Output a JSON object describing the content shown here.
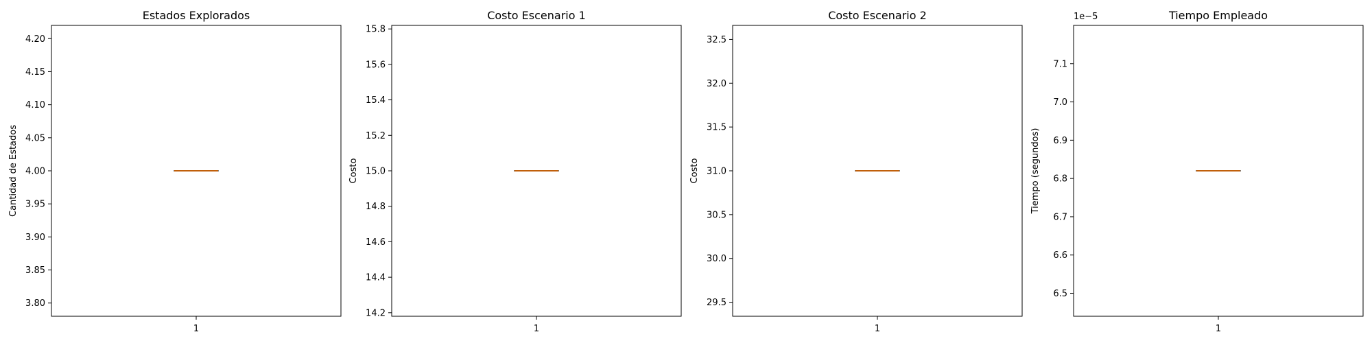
{
  "chart_data": [
    {
      "type": "box",
      "title": "Estados Explorados",
      "xlabel": "",
      "ylabel": "Cantidad de Estados",
      "categories": [
        "1"
      ],
      "yticks": [
        "3.80",
        "3.85",
        "3.90",
        "3.95",
        "4.00",
        "4.05",
        "4.10",
        "4.15",
        "4.20"
      ],
      "ylim": [
        3.78,
        4.22
      ],
      "y_offset_label": "",
      "box": {
        "min": 4.0,
        "q1": 4.0,
        "median": 4.0,
        "q3": 4.0,
        "max": 4.0
      }
    },
    {
      "type": "box",
      "title": "Costo Escenario 1",
      "xlabel": "",
      "ylabel": "Costo",
      "categories": [
        "1"
      ],
      "yticks": [
        "14.2",
        "14.4",
        "14.6",
        "14.8",
        "15.0",
        "15.2",
        "15.4",
        "15.6",
        "15.8"
      ],
      "ylim": [
        14.18,
        15.82
      ],
      "y_offset_label": "",
      "box": {
        "min": 15.0,
        "q1": 15.0,
        "median": 15.0,
        "q3": 15.0,
        "max": 15.0
      }
    },
    {
      "type": "box",
      "title": "Costo Escenario 2",
      "xlabel": "",
      "ylabel": "Costo",
      "categories": [
        "1"
      ],
      "yticks": [
        "29.5",
        "30.0",
        "30.5",
        "31.0",
        "31.5",
        "32.0",
        "32.5"
      ],
      "ylim": [
        29.34,
        32.66
      ],
      "y_offset_label": "",
      "box": {
        "min": 31.0,
        "q1": 31.0,
        "median": 31.0,
        "q3": 31.0,
        "max": 31.0
      }
    },
    {
      "type": "box",
      "title": "Tiempo Empleado",
      "xlabel": "",
      "ylabel": "Tiempo (segundos)",
      "categories": [
        "1"
      ],
      "yticks": [
        "6.5",
        "6.6",
        "6.7",
        "6.8",
        "6.9",
        "7.0",
        "7.1"
      ],
      "ylim": [
        6.44,
        7.2
      ],
      "y_offset_label": "1e−5",
      "box": {
        "min": 6.82,
        "q1": 6.82,
        "median": 6.82,
        "q3": 6.82,
        "max": 6.82
      }
    }
  ],
  "colors": {
    "box": "#000000",
    "median": "#ff7f0e",
    "axes": "#000000"
  }
}
